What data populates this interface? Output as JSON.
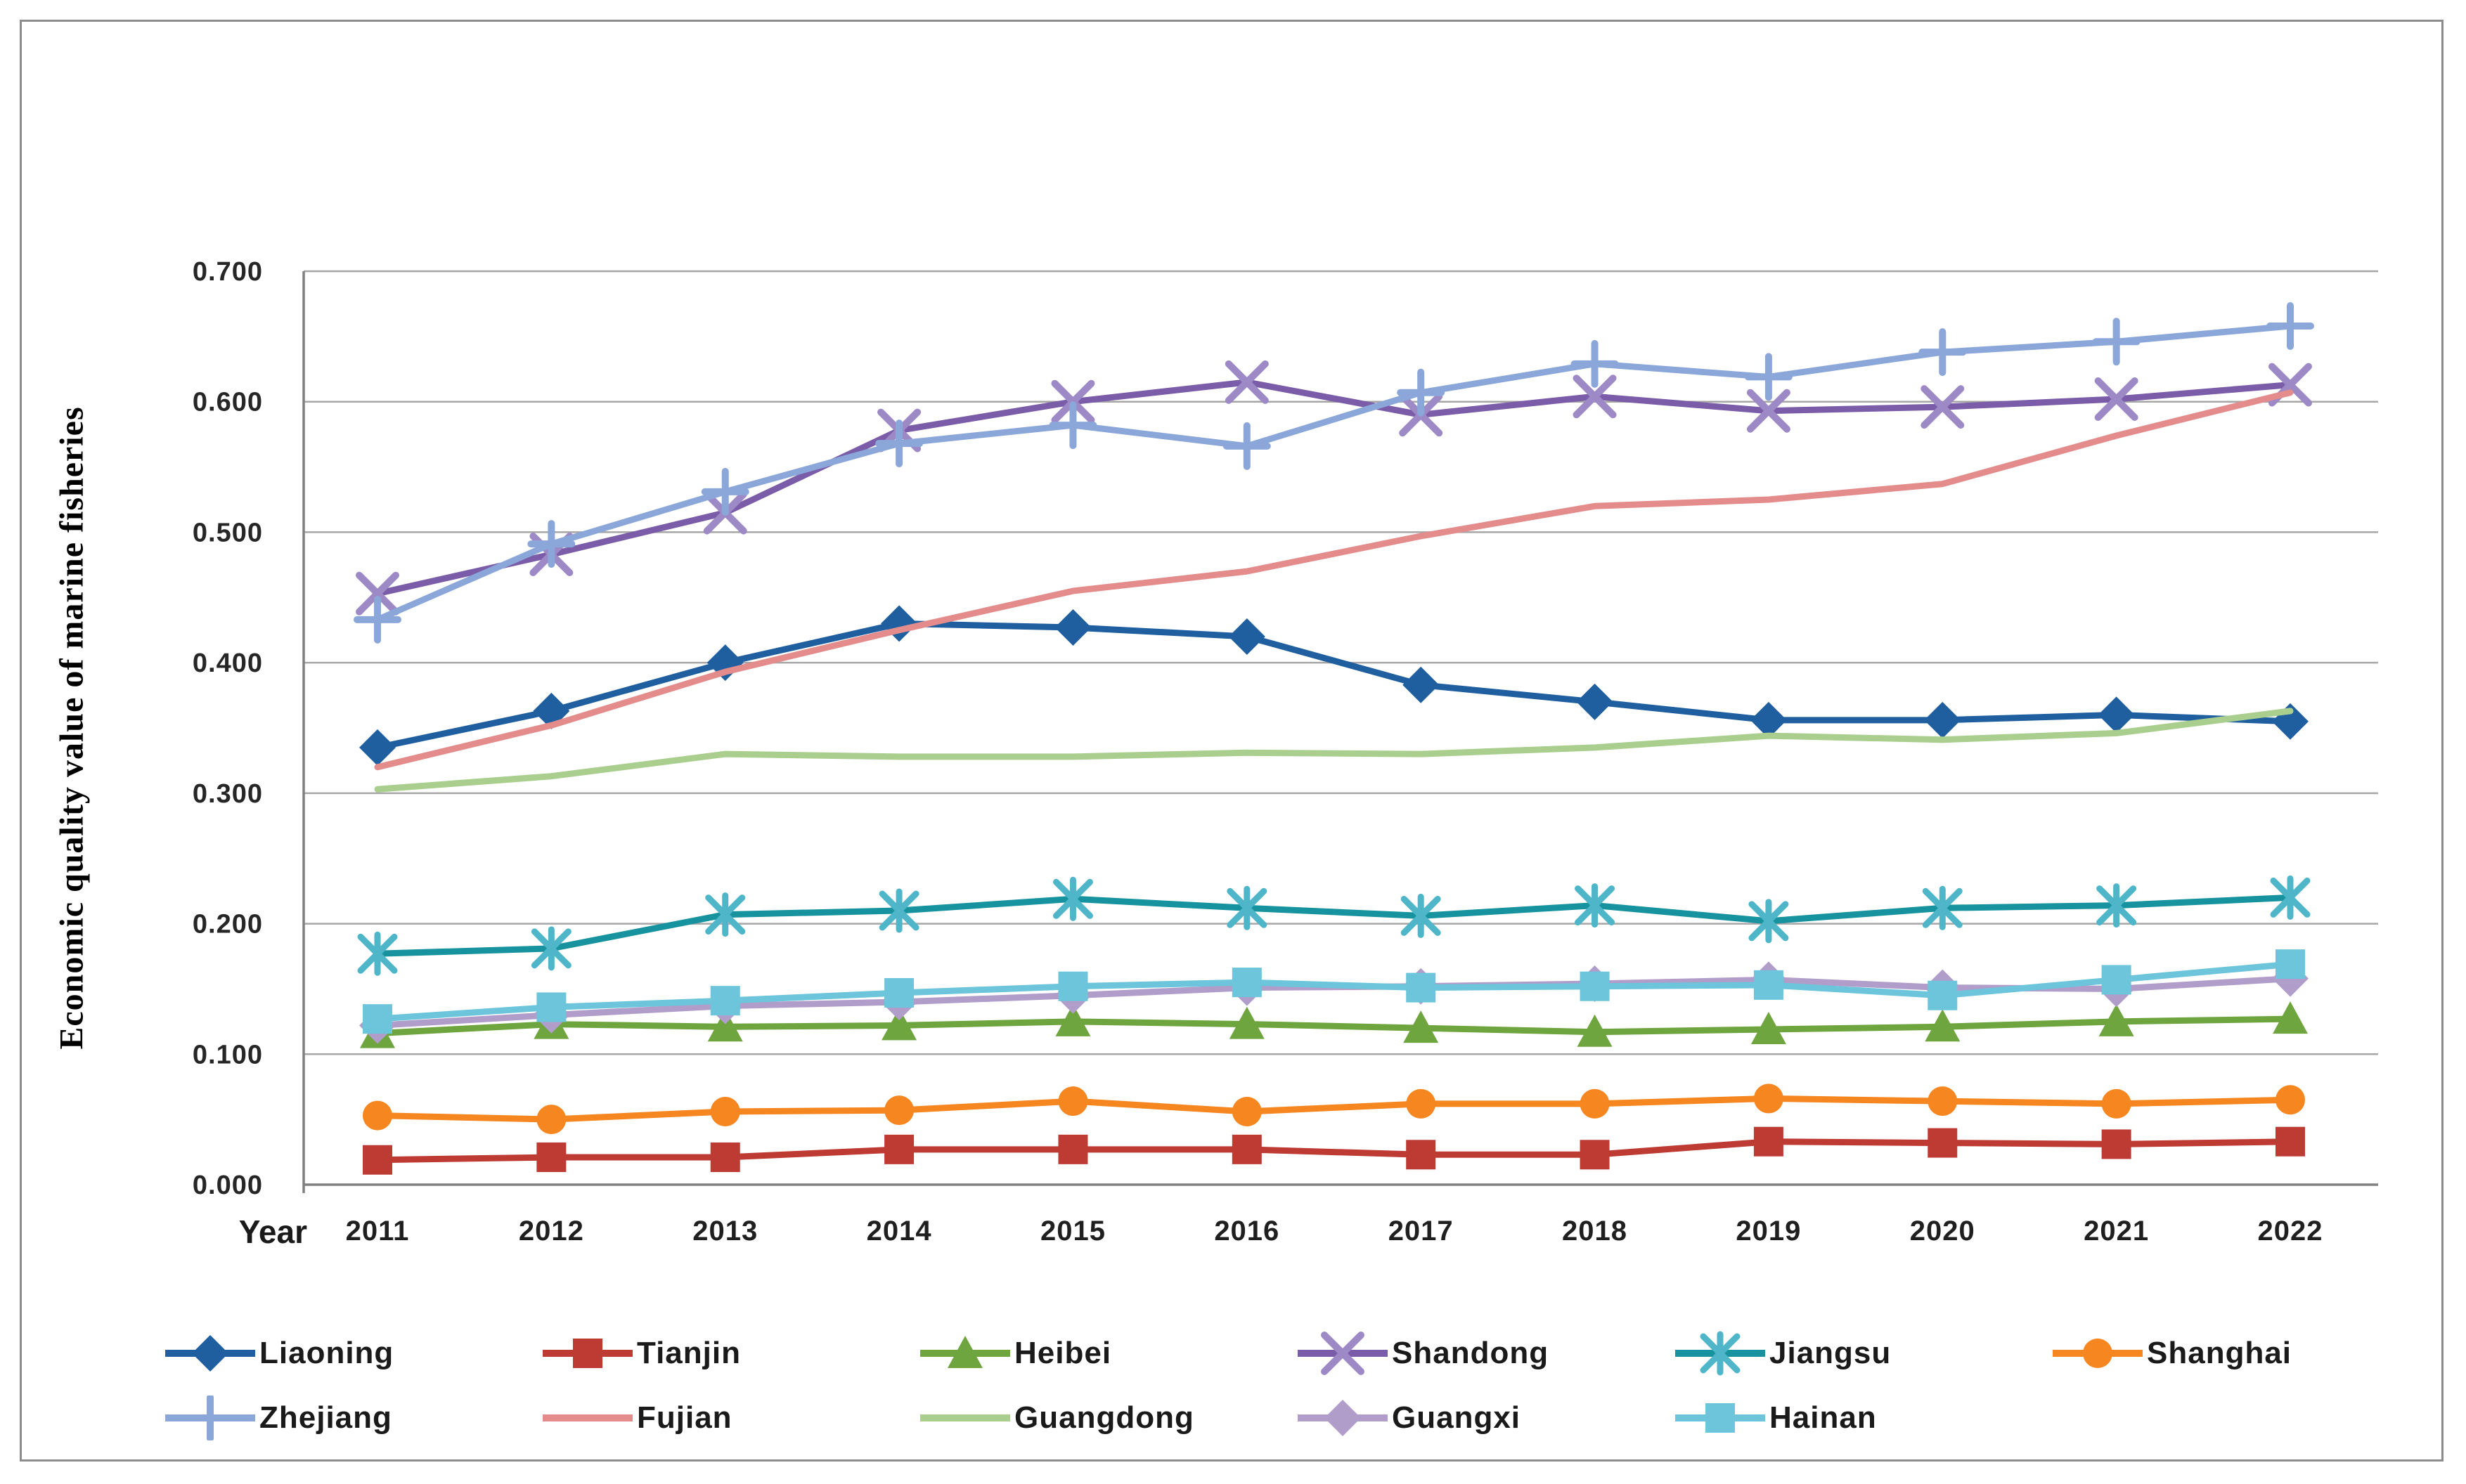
{
  "page": {
    "background": "#ffffff",
    "frame_color": "#8c8c8c"
  },
  "colors": {
    "gridline": "#a6a6a6",
    "axis": "#808080",
    "tick_text": "#262626",
    "year_text": "#1f1f1f"
  },
  "chart_data": {
    "type": "line",
    "title": "",
    "xlabel": "Year",
    "ylabel": "Economic quality value of marine fisheries",
    "x": [
      "2011",
      "2012",
      "2013",
      "2014",
      "2015",
      "2016",
      "2017",
      "2018",
      "2019",
      "2020",
      "2021",
      "2022"
    ],
    "ylim": [
      0,
      0.7
    ],
    "ytick_step": 0.1,
    "yticks": [
      "0.000",
      "0.100",
      "0.200",
      "0.300",
      "0.400",
      "0.500",
      "0.600",
      "0.700"
    ],
    "grid": true,
    "legend_position": "bottom",
    "legend_rows": [
      6,
      5
    ],
    "series": [
      {
        "name": "Liaoning",
        "color": "#1F5FA0",
        "marker": "diamond",
        "values": [
          0.335,
          0.363,
          0.4,
          0.43,
          0.427,
          0.42,
          0.383,
          0.37,
          0.356,
          0.356,
          0.36,
          0.355
        ]
      },
      {
        "name": "Tianjin",
        "color": "#BE3B34",
        "marker": "square",
        "values": [
          0.019,
          0.021,
          0.021,
          0.027,
          0.027,
          0.027,
          0.023,
          0.023,
          0.033,
          0.032,
          0.031,
          0.033
        ]
      },
      {
        "name": "Heibei",
        "color": "#6FA53F",
        "marker": "triangle",
        "values": [
          0.116,
          0.123,
          0.121,
          0.122,
          0.125,
          0.123,
          0.12,
          0.117,
          0.119,
          0.121,
          0.125,
          0.127
        ]
      },
      {
        "name": "Shandong",
        "color": "#7A5CA8",
        "marker": "x",
        "marker_color": "#9C89C5",
        "values": [
          0.453,
          0.483,
          0.515,
          0.578,
          0.6,
          0.615,
          0.59,
          0.604,
          0.593,
          0.596,
          0.602,
          0.613
        ]
      },
      {
        "name": "Jiangsu",
        "color": "#17939F",
        "marker": "asterisk",
        "marker_color": "#4FB6C9",
        "values": [
          0.177,
          0.181,
          0.207,
          0.21,
          0.219,
          0.212,
          0.206,
          0.214,
          0.202,
          0.212,
          0.214,
          0.22
        ]
      },
      {
        "name": "Shanghai",
        "color": "#F6861F",
        "marker": "circle",
        "values": [
          0.053,
          0.05,
          0.056,
          0.057,
          0.064,
          0.056,
          0.062,
          0.062,
          0.066,
          0.064,
          0.062,
          0.065
        ]
      },
      {
        "name": "Zhejiang",
        "color": "#8BA7D9",
        "marker": "plus",
        "values": [
          0.433,
          0.491,
          0.531,
          0.568,
          0.582,
          0.566,
          0.607,
          0.629,
          0.619,
          0.638,
          0.646,
          0.658
        ]
      },
      {
        "name": "Fujian",
        "color": "#E38C8B",
        "marker": "none",
        "values": [
          0.32,
          0.352,
          0.393,
          0.425,
          0.455,
          0.47,
          0.497,
          0.52,
          0.525,
          0.537,
          0.574,
          0.607
        ]
      },
      {
        "name": "Guangdong",
        "color": "#A9CE8D",
        "marker": "none",
        "values": [
          0.303,
          0.313,
          0.33,
          0.328,
          0.328,
          0.331,
          0.33,
          0.335,
          0.344,
          0.341,
          0.346,
          0.363
        ]
      },
      {
        "name": "Guangxi",
        "color": "#B09DCA",
        "marker": "diamond",
        "values": [
          0.122,
          0.13,
          0.137,
          0.14,
          0.145,
          0.151,
          0.152,
          0.154,
          0.157,
          0.151,
          0.15,
          0.158
        ]
      },
      {
        "name": "Hainan",
        "color": "#6CC5DB",
        "marker": "square",
        "values": [
          0.127,
          0.136,
          0.141,
          0.147,
          0.152,
          0.155,
          0.151,
          0.152,
          0.153,
          0.145,
          0.157,
          0.169
        ]
      }
    ]
  }
}
